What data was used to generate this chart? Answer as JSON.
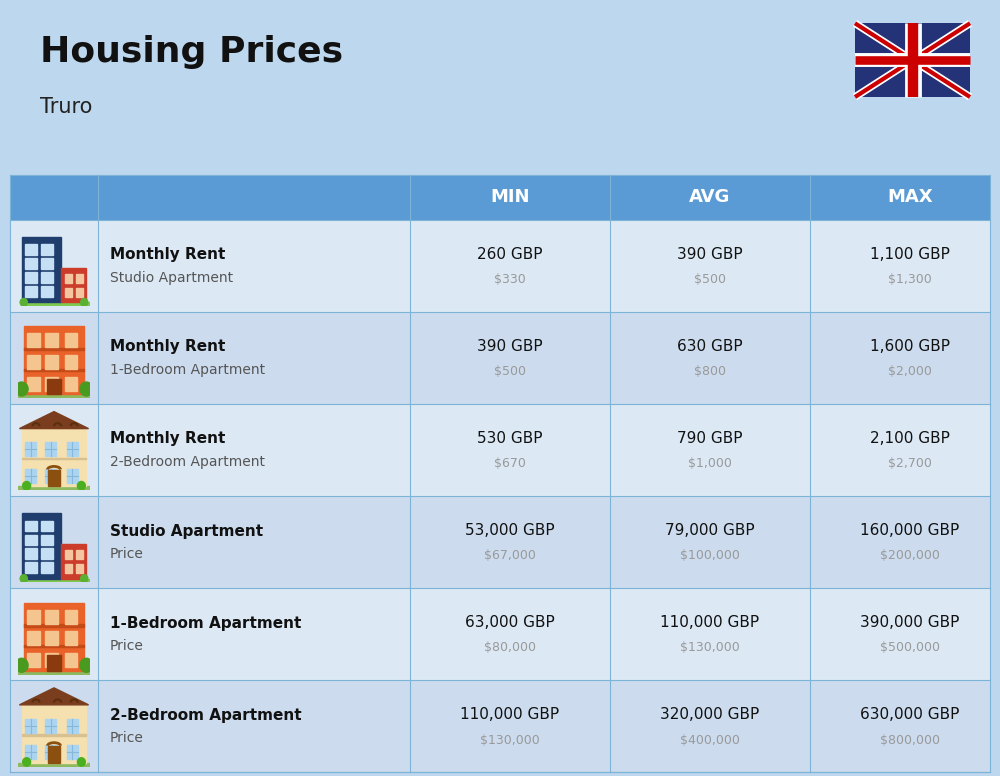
{
  "title": "Housing Prices",
  "subtitle": "Truro",
  "bg_color": "#bdd7ee",
  "header_bg": "#5b9bd5",
  "header_text_color": "#ffffff",
  "row_bg_even": "#dce9f5",
  "row_bg_odd": "#ccdcee",
  "divider_color": "#7eb3d8",
  "columns": [
    "MIN",
    "AVG",
    "MAX"
  ],
  "rows": [
    {
      "bold_label": "Monthly Rent",
      "sub_label": "Studio Apartment",
      "icon": "blue_office",
      "min_gbp": "260 GBP",
      "min_usd": "$330",
      "avg_gbp": "390 GBP",
      "avg_usd": "$500",
      "max_gbp": "1,100 GBP",
      "max_usd": "$1,300"
    },
    {
      "bold_label": "Monthly Rent",
      "sub_label": "1-Bedroom Apartment",
      "icon": "orange_apartment",
      "min_gbp": "390 GBP",
      "min_usd": "$500",
      "avg_gbp": "630 GBP",
      "avg_usd": "$800",
      "max_gbp": "1,600 GBP",
      "max_usd": "$2,000"
    },
    {
      "bold_label": "Monthly Rent",
      "sub_label": "2-Bedroom Apartment",
      "icon": "beige_house",
      "min_gbp": "530 GBP",
      "min_usd": "$670",
      "avg_gbp": "790 GBP",
      "avg_usd": "$1,000",
      "max_gbp": "2,100 GBP",
      "max_usd": "$2,700"
    },
    {
      "bold_label": "Studio Apartment",
      "sub_label": "Price",
      "icon": "blue_office",
      "min_gbp": "53,000 GBP",
      "min_usd": "$67,000",
      "avg_gbp": "79,000 GBP",
      "avg_usd": "$100,000",
      "max_gbp": "160,000 GBP",
      "max_usd": "$200,000"
    },
    {
      "bold_label": "1-Bedroom Apartment",
      "sub_label": "Price",
      "icon": "orange_apartment",
      "min_gbp": "63,000 GBP",
      "min_usd": "$80,000",
      "avg_gbp": "110,000 GBP",
      "avg_usd": "$130,000",
      "max_gbp": "390,000 GBP",
      "max_usd": "$500,000"
    },
    {
      "bold_label": "2-Bedroom Apartment",
      "sub_label": "Price",
      "icon": "beige_house",
      "min_gbp": "110,000 GBP",
      "min_usd": "$130,000",
      "avg_gbp": "320,000 GBP",
      "avg_usd": "$400,000",
      "max_gbp": "630,000 GBP",
      "max_usd": "$800,000"
    }
  ]
}
